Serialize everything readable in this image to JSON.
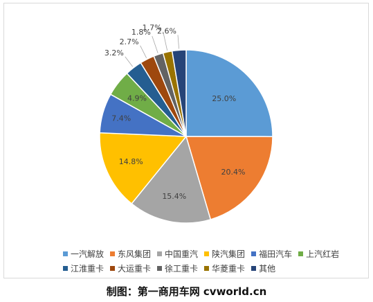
{
  "chart_data": {
    "type": "pie",
    "title": "",
    "categories": [
      "一汽解放",
      "东风集团",
      "中国重汽",
      "陕汽集团",
      "福田汽车",
      "上汽红岩",
      "江淮重卡",
      "大运重卡",
      "徐工重卡",
      "华菱重卡",
      "其他"
    ],
    "values": [
      25.0,
      20.4,
      15.4,
      14.8,
      7.4,
      4.9,
      3.2,
      2.7,
      1.8,
      1.7,
      2.6
    ],
    "labels": [
      "25.0%",
      "20.4%",
      "15.4%",
      "14.8%",
      "7.4%",
      "4.9%",
      "3.2%",
      "2.7%",
      "1.8%",
      "1.7%",
      "2.6%"
    ],
    "colors": [
      "#5b9bd5",
      "#ed7d31",
      "#a5a5a5",
      "#ffc000",
      "#4472c4",
      "#70ad47",
      "#255e91",
      "#9e480e",
      "#636363",
      "#997300",
      "#264478"
    ],
    "legend_position": "bottom",
    "legend_rows": [
      [
        0,
        1,
        2,
        3,
        4,
        5
      ],
      [
        6,
        7,
        8,
        9,
        10
      ]
    ]
  },
  "caption": "制图：第一商用车网 cvworld.cn"
}
